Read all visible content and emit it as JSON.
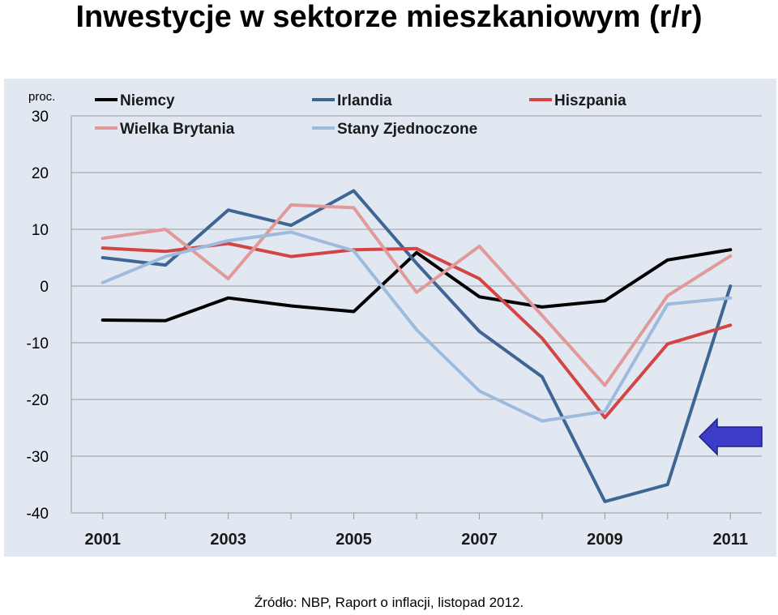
{
  "page": {
    "title": "Inwestycje w sektorze mieszkaniowym (r/r)",
    "source": "Źródło: NBP, Raport o inflacji, listopad 2012."
  },
  "chart_data": {
    "type": "line",
    "title": "Inwestycje w sektorze mieszkaniowym (r/r)",
    "unit_label": "proc.",
    "xlabel": "",
    "ylabel": "",
    "x": [
      2001,
      2002,
      2003,
      2004,
      2005,
      2006,
      2007,
      2008,
      2009,
      2010,
      2011
    ],
    "x_tick_labels": [
      "2001",
      "2003",
      "2005",
      "2007",
      "2009",
      "2011"
    ],
    "x_tick_values": [
      2001,
      2003,
      2005,
      2007,
      2009,
      2011
    ],
    "xlim": [
      2000.5,
      2011.5
    ],
    "ylim": [
      -40,
      30
    ],
    "y_ticks": [
      30,
      20,
      10,
      0,
      -10,
      -20,
      -30,
      -40
    ],
    "grid": "horizontal",
    "legend_position": "top",
    "background": "#e1e8f2",
    "series": [
      {
        "name": "Niemcy",
        "color": "#000000",
        "values": [
          -6,
          -6.1,
          -2.1,
          -3.5,
          -4.5,
          5.9,
          -1.9,
          -3.7,
          -2.6,
          4.6,
          6.4
        ]
      },
      {
        "name": "Irlandia",
        "color": "#3f6594",
        "values": [
          5,
          3.7,
          13.4,
          10.7,
          16.8,
          4,
          -8,
          -16,
          -38,
          -35,
          0
        ]
      },
      {
        "name": "Hiszpania",
        "color": "#d34445",
        "values": [
          6.7,
          6.1,
          7.5,
          5.2,
          6.4,
          6.6,
          1.3,
          -9.2,
          -23.2,
          -10.2,
          -6.9
        ]
      },
      {
        "name": "Wielka Brytania",
        "color": "#e19a9a",
        "values": [
          8.4,
          10,
          1.3,
          14.3,
          13.8,
          -1.1,
          7,
          -5.2,
          -17.5,
          -1.7,
          5.3
        ]
      },
      {
        "name": "Stany Zjednoczone",
        "color": "#9ebbde",
        "values": [
          0.6,
          5.2,
          8,
          9.5,
          6.2,
          -7.7,
          -18.5,
          -23.8,
          -22.1,
          -3.2,
          -2.1
        ]
      }
    ],
    "annotations": [
      {
        "kind": "arrow",
        "direction": "left",
        "color": "#3c3cc8",
        "points_to_series": "Irlandia"
      }
    ]
  }
}
